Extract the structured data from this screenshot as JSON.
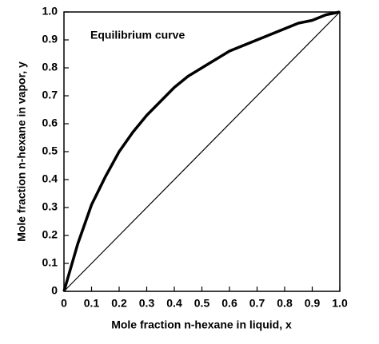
{
  "chart_data": {
    "type": "line",
    "x": [
      0,
      0.05,
      0.1,
      0.15,
      0.2,
      0.25,
      0.3,
      0.35,
      0.4,
      0.45,
      0.5,
      0.55,
      0.6,
      0.65,
      0.7,
      0.75,
      0.8,
      0.85,
      0.9,
      0.95,
      1
    ],
    "series": [
      {
        "name": "Equilibrium curve",
        "color": "#000000",
        "values": [
          0,
          0.17,
          0.31,
          0.41,
          0.5,
          0.57,
          0.63,
          0.68,
          0.73,
          0.77,
          0.8,
          0.83,
          0.86,
          0.88,
          0.9,
          0.92,
          0.94,
          0.96,
          0.97,
          0.99,
          1
        ]
      },
      {
        "color": "#000000",
        "x": [
          0,
          1
        ],
        "values": [
          0,
          1
        ]
      }
    ],
    "xlabel": "Mole fraction n-hexane in liquid, x",
    "ylabel": "Mole fraction n-hexane in vapor, y",
    "xlim": [
      0,
      1
    ],
    "ylim": [
      0,
      1
    ],
    "xticks": [
      0,
      0.1,
      0.2,
      0.3,
      0.4,
      0.5,
      0.6,
      0.7,
      0.8,
      0.9,
      {
        "value": 1,
        "label": "1.0"
      }
    ],
    "yticks": [
      0,
      0.1,
      0.2,
      0.3,
      0.4,
      0.5,
      0.6,
      0.7,
      0.8,
      0.9,
      {
        "value": 1,
        "label": "1.0"
      }
    ],
    "grid": false
  }
}
